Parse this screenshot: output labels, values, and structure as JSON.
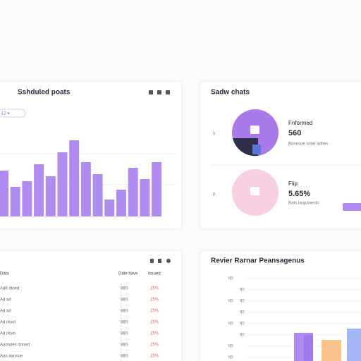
{
  "posts_card": {
    "title": "Sshduled poats",
    "filter": "12 ▾",
    "bars": [
      65,
      42,
      50,
      74,
      57,
      91,
      108,
      77,
      60,
      24,
      38,
      69,
      53,
      77
    ],
    "bar_color": "#b08cf0"
  },
  "sales_card": {
    "title": "Sadw chats",
    "items": [
      {
        "index": "0",
        "label": "Fnformed",
        "value": "560",
        "note": "Bonnsoe sooe adbes"
      },
      {
        "index": "0",
        "label": "Fiip",
        "value": "5.65%",
        "note": "Bato laopanento"
      }
    ]
  },
  "table_card": {
    "columns": [
      "Data",
      "Date have",
      "Issued"
    ],
    "rows": [
      [
        "Ad8 dtoed",
        "880",
        "25%"
      ],
      [
        "Ad ad",
        "880",
        "25%"
      ],
      [
        "Ad ad",
        "880",
        "25%"
      ],
      [
        "Ad dovd",
        "880",
        "25%"
      ],
      [
        "Ad dove",
        "880",
        "25%"
      ],
      [
        "Aaonoes doned",
        "880",
        "25%"
      ],
      [
        "Aao aaonoe",
        "880",
        "25%"
      ]
    ]
  },
  "bar_card": {
    "title": "Revier Rarnar Peansagenus",
    "row_labels": [
      [
        "80",
        ""
      ],
      [
        "",
        "80"
      ],
      [
        "80",
        "80"
      ],
      [
        "",
        "80"
      ],
      [
        "80",
        "80"
      ],
      [
        "",
        "80"
      ],
      [
        "80",
        ""
      ],
      [
        "80",
        ""
      ]
    ],
    "bars": [
      40,
      37,
      30,
      46
    ],
    "bar_colors": [
      "#b08cf0",
      "#9f7ae8",
      "#f7c28b",
      "#a3b6f5"
    ]
  }
}
